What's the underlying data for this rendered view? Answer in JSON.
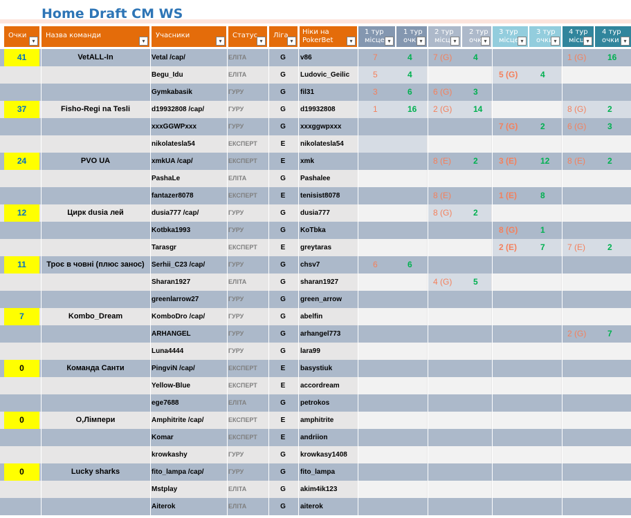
{
  "sheet": {
    "title": "Home Draft CM WS"
  },
  "columns": {
    "score": "Очки",
    "team": "Назва команди",
    "members": "Учасники",
    "status": "Статус",
    "league": "Ліга",
    "nick": "Ніки на PokerBet",
    "r1_place": "1 тур місце",
    "r1_points": "1 тур очки",
    "r2_place": "2 тур місце",
    "r2_points": "2 тур очки",
    "r3_place": "3 тур місце",
    "r3_points": "3 тур очки",
    "r4_place": "4 тур місце",
    "r4_points": "4 тур очки",
    "filter_glyph": "▾"
  },
  "colors": {
    "header_orange": "#e46c0a",
    "score_highlight": "#ffff00",
    "place_text": "#f4805c",
    "points_text": "#00b050",
    "title_text": "#2e75b6"
  },
  "teams": [
    {
      "score": "41",
      "name": "VetALL-In",
      "members": [
        {
          "member": "Vetal /cap/",
          "status": "ЕЛІТА",
          "league": "G",
          "nick": "v86",
          "r1_place": "7",
          "r1_points": "4",
          "r2_place": "7 (G)",
          "r2_points": "4",
          "r3_place": "",
          "r3_points": "",
          "r4_place": "1 (G)",
          "r4_points": "16"
        },
        {
          "member": "Begu_Idu",
          "status": "ЕЛІТА",
          "league": "G",
          "nick": "Ludovic_Geilic",
          "r1_place": "5",
          "r1_points": "4",
          "r2_place": "",
          "r2_points": "",
          "r3_place": "5 (G)",
          "r3_points": "4",
          "r4_place": "",
          "r4_points": ""
        },
        {
          "member": "Gymkabasik",
          "status": "ГУРУ",
          "league": "G",
          "nick": "fil31",
          "r1_place": "3",
          "r1_points": "6",
          "r2_place": "6 (G)",
          "r2_points": "3",
          "r3_place": "",
          "r3_points": "",
          "r4_place": "",
          "r4_points": ""
        }
      ]
    },
    {
      "score": "37",
      "name": "Fisho-Regi na Tesli",
      "members": [
        {
          "member": "d19932808 /cap/",
          "status": "ГУРУ",
          "league": "G",
          "nick": "d19932808",
          "r1_place": "1",
          "r1_points": "16",
          "r2_place": "2 (G)",
          "r2_points": "14",
          "r3_place": "",
          "r3_points": "",
          "r4_place": "8 (G)",
          "r4_points": "2"
        },
        {
          "member": "xxxGGWPxxx",
          "status": "ГУРУ",
          "league": "G",
          "nick": "xxxggwpxxx",
          "r1_place": "",
          "r1_points": "",
          "r2_place": "",
          "r2_points": "",
          "r3_place": "7 (G)",
          "r3_points": "2",
          "r4_place": "6 (G)",
          "r4_points": "3"
        },
        {
          "member": "nikolatesla54",
          "status": "ЕКСПЕРТ",
          "league": "E",
          "nick": "nikolatesla54",
          "r1_place": "",
          "r1_points": "",
          "r2_place": "",
          "r2_points": "",
          "r3_place": "",
          "r3_points": "",
          "r4_place": "",
          "r4_points": ""
        }
      ]
    },
    {
      "score": "24",
      "name": "PVO UA",
      "members": [
        {
          "member": "xmkUA /cap/",
          "status": "ЕКСПЕРТ",
          "league": "E",
          "nick": "xmk",
          "r1_place": "",
          "r1_points": "",
          "r2_place": "8 (E)",
          "r2_points": "2",
          "r3_place": "3 (E)",
          "r3_points": "12",
          "r4_place": "8 (E)",
          "r4_points": "2"
        },
        {
          "member": "PashaLe",
          "status": "ЕЛІТА",
          "league": "G",
          "nick": "Pashalee",
          "r1_place": "",
          "r1_points": "",
          "r2_place": "",
          "r2_points": "",
          "r3_place": "",
          "r3_points": "",
          "r4_place": "",
          "r4_points": ""
        },
        {
          "member": "fantazer8078",
          "status": "ЕКСПЕРТ",
          "league": "E",
          "nick": "tenisist8078",
          "r1_place": "",
          "r1_points": "",
          "r2_place": "8 (E)",
          "r2_points": "",
          "r3_place": "1 (E)",
          "r3_points": "8",
          "r4_place": "",
          "r4_points": ""
        }
      ]
    },
    {
      "score": "12",
      "name": "Цирк dusia лей",
      "members": [
        {
          "member": "dusia777 /cap/",
          "status": "ГУРУ",
          "league": "G",
          "nick": "dusia777",
          "r1_place": "",
          "r1_points": "",
          "r2_place": "8 (G)",
          "r2_points": "2",
          "r3_place": "",
          "r3_points": "",
          "r4_place": "",
          "r4_points": ""
        },
        {
          "member": "Kotbka1993",
          "status": "ГУРУ",
          "league": "G",
          "nick": "KoTbka",
          "r1_place": "",
          "r1_points": "",
          "r2_place": "",
          "r2_points": "",
          "r3_place": "8 (G)",
          "r3_points": "1",
          "r4_place": "",
          "r4_points": ""
        },
        {
          "member": "Tarasgr",
          "status": "ЕКСПЕРТ",
          "league": "E",
          "nick": "greytaras",
          "r1_place": "",
          "r1_points": "",
          "r2_place": "",
          "r2_points": "",
          "r3_place": "2 (E)",
          "r3_points": "7",
          "r4_place": "7 (E)",
          "r4_points": "2"
        }
      ]
    },
    {
      "score": "11",
      "name": "Троє в човні (плюс занос)",
      "members": [
        {
          "member": "Serhii_C23 /cap/",
          "status": "ГУРУ",
          "league": "G",
          "nick": "chsv7",
          "r1_place": "6",
          "r1_points": "6",
          "r2_place": "",
          "r2_points": "",
          "r3_place": "",
          "r3_points": "",
          "r4_place": "",
          "r4_points": ""
        },
        {
          "member": "Sharan1927",
          "status": "ЕЛІТА",
          "league": "G",
          "nick": "sharan1927",
          "r1_place": "",
          "r1_points": "",
          "r2_place": "4 (G)",
          "r2_points": "5",
          "r3_place": "",
          "r3_points": "",
          "r4_place": "",
          "r4_points": ""
        },
        {
          "member": "greenlarrow27",
          "status": "ГУРУ",
          "league": "G",
          "nick": "green_arrow",
          "r1_place": "",
          "r1_points": "",
          "r2_place": "",
          "r2_points": "",
          "r3_place": "",
          "r3_points": "",
          "r4_place": "",
          "r4_points": ""
        }
      ]
    },
    {
      "score": "7",
      "name": "Kombo_Dream",
      "members": [
        {
          "member": "KomboDro /cap/",
          "status": "ГУРУ",
          "league": "G",
          "nick": "abelfin",
          "r1_place": "",
          "r1_points": "",
          "r2_place": "",
          "r2_points": "",
          "r3_place": "",
          "r3_points": "",
          "r4_place": "",
          "r4_points": ""
        },
        {
          "member": "ARHANGEL",
          "status": "ГУРУ",
          "league": "G",
          "nick": "arhangel773",
          "r1_place": "",
          "r1_points": "",
          "r2_place": "",
          "r2_points": "",
          "r3_place": "",
          "r3_points": "",
          "r4_place": "2 (G)",
          "r4_points": "7"
        },
        {
          "member": "Luna4444",
          "status": "ГУРУ",
          "league": "G",
          "nick": "lara99",
          "r1_place": "",
          "r1_points": "",
          "r2_place": "",
          "r2_points": "",
          "r3_place": "",
          "r3_points": "",
          "r4_place": "",
          "r4_points": ""
        }
      ]
    },
    {
      "score": "0",
      "name": "Команда Санти",
      "members": [
        {
          "member": "PingviN /cap/",
          "status": "ЕКСПЕРТ",
          "league": "E",
          "nick": "basystiuk",
          "r1_place": "",
          "r1_points": "",
          "r2_place": "",
          "r2_points": "",
          "r3_place": "",
          "r3_points": "",
          "r4_place": "",
          "r4_points": ""
        },
        {
          "member": "Yellow-Blue",
          "status": "ЕКСПЕРТ",
          "league": "E",
          "nick": "accordream",
          "r1_place": "",
          "r1_points": "",
          "r2_place": "",
          "r2_points": "",
          "r3_place": "",
          "r3_points": "",
          "r4_place": "",
          "r4_points": ""
        },
        {
          "member": "ege7688",
          "status": "ЕЛІТА",
          "league": "G",
          "nick": "petrokos",
          "r1_place": "",
          "r1_points": "",
          "r2_place": "",
          "r2_points": "",
          "r3_place": "",
          "r3_points": "",
          "r4_place": "",
          "r4_points": ""
        }
      ]
    },
    {
      "score": "0",
      "name": "О,Лімпери",
      "members": [
        {
          "member": "Amphitrite /cap/",
          "status": "ЕКСПЕРТ",
          "league": "E",
          "nick": "amphitrite",
          "r1_place": "",
          "r1_points": "",
          "r2_place": "",
          "r2_points": "",
          "r3_place": "",
          "r3_points": "",
          "r4_place": "",
          "r4_points": ""
        },
        {
          "member": "Komar",
          "status": "ЕКСПЕРТ",
          "league": "E",
          "nick": "andriion",
          "r1_place": "",
          "r1_points": "",
          "r2_place": "",
          "r2_points": "",
          "r3_place": "",
          "r3_points": "",
          "r4_place": "",
          "r4_points": ""
        },
        {
          "member": "krowkashy",
          "status": "ГУРУ",
          "league": "G",
          "nick": "krowkasy1408",
          "r1_place": "",
          "r1_points": "",
          "r2_place": "",
          "r2_points": "",
          "r3_place": "",
          "r3_points": "",
          "r4_place": "",
          "r4_points": ""
        }
      ]
    },
    {
      "score": "0",
      "name": "Lucky sharks",
      "members": [
        {
          "member": "fito_lampa /cap/",
          "status": "ГУРУ",
          "league": "G",
          "nick": "fito_lampa",
          "r1_place": "",
          "r1_points": "",
          "r2_place": "",
          "r2_points": "",
          "r3_place": "",
          "r3_points": "",
          "r4_place": "",
          "r4_points": ""
        },
        {
          "member": "Mstplay",
          "status": "ЕЛІТА",
          "league": "G",
          "nick": "akim4ik123",
          "r1_place": "",
          "r1_points": "",
          "r2_place": "",
          "r2_points": "",
          "r3_place": "",
          "r3_points": "",
          "r4_place": "",
          "r4_points": ""
        },
        {
          "member": "Aiterok",
          "status": "ЕЛІТА",
          "league": "G",
          "nick": "aiterok",
          "r1_place": "",
          "r1_points": "",
          "r2_place": "",
          "r2_points": "",
          "r3_place": "",
          "r3_points": "",
          "r4_place": "",
          "r4_points": ""
        }
      ]
    }
  ]
}
